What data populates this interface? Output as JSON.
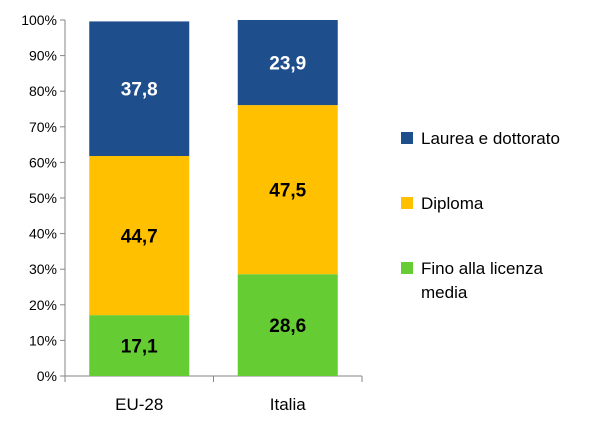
{
  "chart_data": {
    "type": "bar",
    "stacked": true,
    "categories": [
      "EU-28",
      "Italia"
    ],
    "series": [
      {
        "name": "Fino alla licenza media",
        "values": [
          17.1,
          28.6
        ],
        "value_labels": [
          "17,1",
          "28,6"
        ],
        "color": "#66CC33",
        "label_color": "#000000"
      },
      {
        "name": "Diploma",
        "values": [
          44.7,
          47.5
        ],
        "value_labels": [
          "44,7",
          "47,5"
        ],
        "color": "#FFC000",
        "label_color": "#000000"
      },
      {
        "name": "Laurea e dottorato",
        "values": [
          37.8,
          23.9
        ],
        "value_labels": [
          "37,8",
          "23,9"
        ],
        "color": "#1F4E8C",
        "label_color": "#FFFFFF"
      }
    ],
    "yticks": [
      "0%",
      "10%",
      "20%",
      "30%",
      "40%",
      "50%",
      "60%",
      "70%",
      "80%",
      "90%",
      "100%"
    ],
    "ylim": [
      0,
      100
    ],
    "grid": false,
    "legend": "right"
  }
}
